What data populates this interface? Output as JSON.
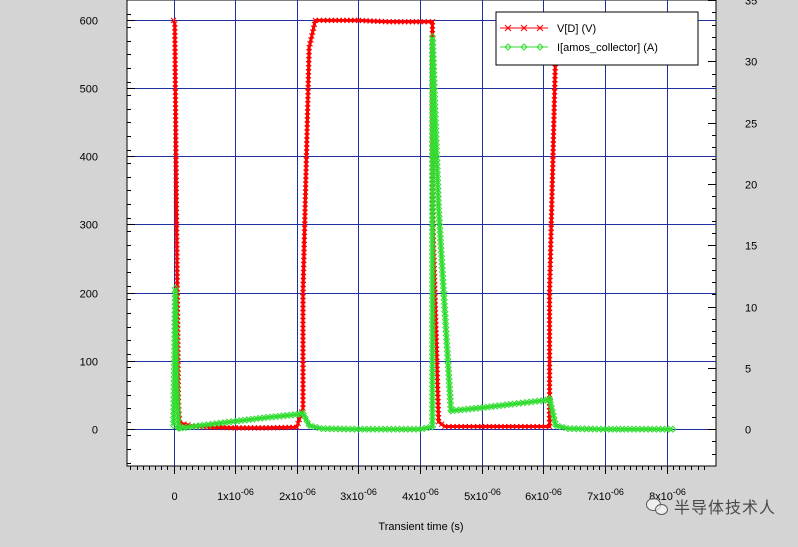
{
  "chart_data": {
    "type": "line",
    "title": "",
    "xlabel": "Transient time (s)",
    "ylabel_left": "",
    "ylabel_right": "",
    "xlim": [
      -7.55e-07,
      8.8e-06
    ],
    "ylim_left": [
      -55,
      630
    ],
    "ylim_right": [
      -3,
      35
    ],
    "x_ticks": [
      {
        "value": 0,
        "label": "0"
      },
      {
        "value": 1e-06,
        "label": "1x10-06",
        "mant": "1x10",
        "exp": "-06"
      },
      {
        "value": 2e-06,
        "label": "2x10-06",
        "mant": "2x10",
        "exp": "-06"
      },
      {
        "value": 3e-06,
        "label": "3x10-06",
        "mant": "3x10",
        "exp": "-06"
      },
      {
        "value": 4e-06,
        "label": "4x10-06",
        "mant": "4x10",
        "exp": "-06"
      },
      {
        "value": 5e-06,
        "label": "5x10-06",
        "mant": "5x10",
        "exp": "-06"
      },
      {
        "value": 6e-06,
        "label": "6x10-06",
        "mant": "6x10",
        "exp": "-06"
      },
      {
        "value": 7e-06,
        "label": "7x10-06",
        "mant": "7x10",
        "exp": "-06"
      },
      {
        "value": 8e-06,
        "label": "8x10-06",
        "mant": "8x10",
        "exp": "-06"
      }
    ],
    "y_ticks_left": [
      "0",
      "100",
      "200",
      "300",
      "400",
      "500",
      "600"
    ],
    "y_ticks_right": [
      "0",
      "5",
      "10",
      "15",
      "20",
      "25",
      "30",
      "35"
    ],
    "grid": true,
    "legend_position": "top-right",
    "series": [
      {
        "name": "V[D] (V)",
        "axis": "left",
        "color": "#ff0000",
        "marker": "x",
        "x": [
          0,
          2e-08,
          5e-08,
          8e-08,
          1e-07,
          3e-07,
          6e-07,
          1e-06,
          1.5e-06,
          2e-06,
          2.1e-06,
          2.1e-06,
          2.2e-06,
          2.3e-06,
          2.5e-06,
          3e-06,
          3.5e-06,
          4e-06,
          4.2e-06,
          4.2e-06,
          4.3e-06,
          4.4e-06,
          5e-06,
          5.5e-06,
          6.1e-06,
          6.1e-06,
          6.2e-06,
          6.3e-06
        ],
        "y": [
          600,
          595,
          300,
          40,
          8,
          4,
          2,
          1,
          1,
          2,
          30,
          200,
          560,
          600,
          600,
          600,
          598,
          598,
          598,
          330,
          10,
          3,
          3,
          3,
          3,
          200,
          560,
          600
        ]
      },
      {
        "name": "I[amos_collector] (A)",
        "axis": "right",
        "color": "#33dd33",
        "marker": "diamond",
        "x": [
          0,
          3e-08,
          5e-08,
          8e-08,
          1e-07,
          2e-07,
          6e-07,
          1e-06,
          1.5e-06,
          2e-06,
          2.1e-06,
          2.2e-06,
          2.4e-06,
          3e-06,
          4e-06,
          4.2e-06,
          4.2e-06,
          4.3e-06,
          4.5e-06,
          5e-06,
          5.5e-06,
          6.1e-06,
          6.1e-06,
          6.2e-06,
          6.4e-06,
          7e-06,
          7.5e-06,
          8.1e-06
        ],
        "y": [
          0.3,
          11.5,
          4,
          0.1,
          0.1,
          0.15,
          0.4,
          0.65,
          0.95,
          1.2,
          1.3,
          0.3,
          0.05,
          0,
          0,
          0.2,
          32,
          18,
          1.5,
          1.75,
          2.05,
          2.4,
          2.5,
          0.3,
          0.05,
          0,
          0,
          0
        ]
      }
    ]
  },
  "watermark": {
    "text": "半导体技术人",
    "icon": "wechat-icon"
  }
}
